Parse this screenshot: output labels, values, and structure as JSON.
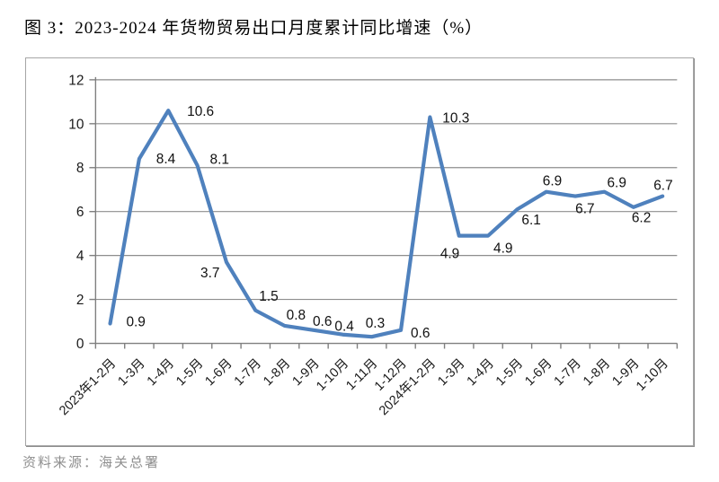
{
  "page": {
    "title": "图 3：2023-2024 年货物贸易出口月度累计同比增速（%）",
    "source_note": "资料来源：海关总署"
  },
  "chart_data": {
    "type": "line",
    "title": "图 3：2023-2024 年货物贸易出口月度累计同比增速（%）",
    "categories": [
      "2023年1-2月",
      "1-3月",
      "1-4月",
      "1-5月",
      "1-6月",
      "1-7月",
      "1-8月",
      "1-9月",
      "1-10月",
      "1-11月",
      "1-12月",
      "2024年1-2月",
      "1-3月",
      "1-4月",
      "1-5月",
      "1-6月",
      "1-7月",
      "1-8月",
      "1-9月",
      "1-10月"
    ],
    "values": [
      0.9,
      8.4,
      10.6,
      8.1,
      3.7,
      1.5,
      0.8,
      0.6,
      0.4,
      0.3,
      0.6,
      10.3,
      4.9,
      4.9,
      6.1,
      6.9,
      6.7,
      6.9,
      6.2,
      6.7
    ],
    "xlabel": "",
    "ylabel": "",
    "ylim": [
      0,
      12
    ],
    "yticks": [
      0,
      2,
      4,
      6,
      8,
      10,
      12
    ],
    "grid": "horizontal",
    "legend": "none",
    "data_labels": true,
    "x_label_rotation": -45,
    "line_color": "#4F81BD",
    "gridline_color": "#8E8E8E",
    "axis_color": "#7F7F7F",
    "tick_label_color": "#1A1A1A",
    "data_label_color": "#111111"
  }
}
